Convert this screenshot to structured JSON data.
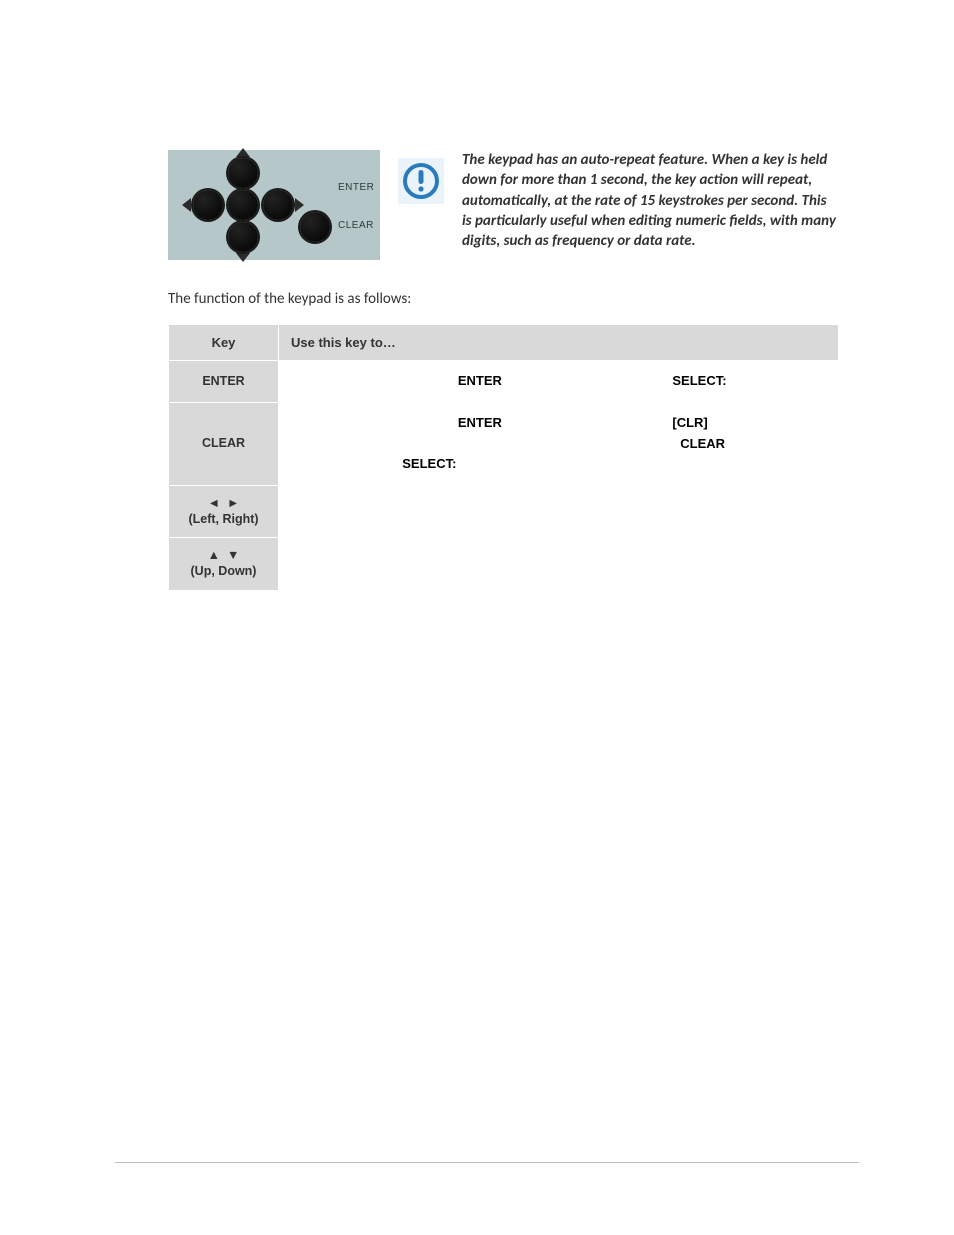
{
  "keypad_labels": {
    "enter": "ENTER",
    "clear": "CLEAR"
  },
  "info_note": "The keypad has an auto-repeat feature. When a key is held down for more than 1 second, the key action will repeat, automatically, at the rate of 15 keystrokes per second. This is particularly useful when editing numeric fields, with many digits, such as frequency or data rate.",
  "lead": "The function of the keypad is as follows:",
  "table": {
    "headers": {
      "key": "Key",
      "use": "Use this key to…"
    },
    "rows": [
      {
        "key_html": "ENTER",
        "desc_tokens": [
          "ENTER",
          "SELECT:"
        ]
      },
      {
        "key_html": "CLEAR",
        "desc_tokens": [
          "ENTER",
          "[CLR]",
          "CLEAR",
          "SELECT:"
        ]
      },
      {
        "key_html": "◄  ►<br>(Left, Right)",
        "desc_tokens": []
      },
      {
        "key_html": "▲  ▼<br>(Up, Down)",
        "desc_tokens": []
      }
    ]
  },
  "colors": {
    "table_header_bg": "#d9d9d9",
    "warn_icon_stroke": "#2a7bbd",
    "warn_icon_bg": "#eaf3fa"
  }
}
